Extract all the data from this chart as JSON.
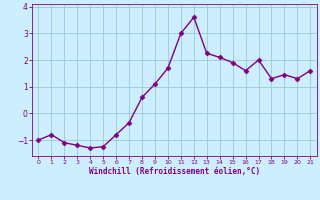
{
  "x": [
    0,
    1,
    2,
    3,
    4,
    5,
    6,
    7,
    8,
    9,
    10,
    11,
    12,
    13,
    14,
    15,
    16,
    17,
    18,
    19,
    20,
    21
  ],
  "y": [
    -1.0,
    -0.8,
    -1.1,
    -1.2,
    -1.3,
    -1.25,
    -0.8,
    -0.35,
    0.6,
    1.1,
    1.7,
    3.0,
    3.6,
    2.25,
    2.1,
    1.9,
    1.6,
    2.0,
    1.3,
    1.45,
    1.3,
    1.6
  ],
  "line_color": "#800080",
  "marker": "D",
  "marker_size": 2.5,
  "bg_color": "#cceeff",
  "grid_color": "#99cccc",
  "xlabel": "Windchill (Refroidissement éolien,°C)",
  "xlabel_color": "#800080",
  "tick_color": "#800080",
  "xlim": [
    -0.5,
    21.5
  ],
  "ylim": [
    -1.6,
    4.1
  ],
  "yticks": [
    -1,
    0,
    1,
    2,
    3,
    4
  ],
  "xticks": [
    0,
    1,
    2,
    3,
    4,
    5,
    6,
    7,
    8,
    9,
    10,
    11,
    12,
    13,
    14,
    15,
    16,
    17,
    18,
    19,
    20,
    21
  ],
  "line_width": 1.0,
  "spine_color": "#800080"
}
